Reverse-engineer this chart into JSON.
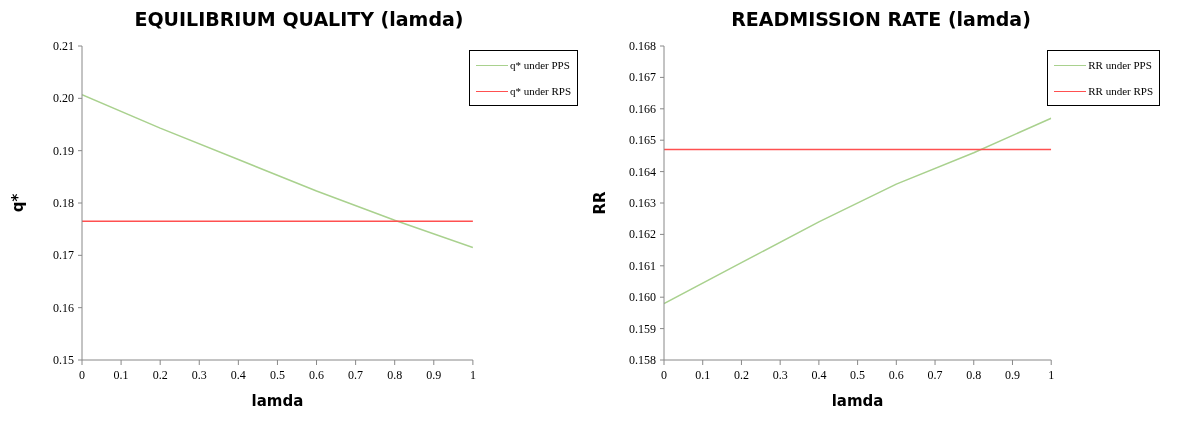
{
  "chart_data": [
    {
      "type": "line",
      "title": "EQUILIBRIUM QUALITY (lamda)",
      "xlabel": "lamda",
      "ylabel": "q*",
      "x": [
        0,
        0.2,
        0.4,
        0.6,
        0.8,
        1
      ],
      "series": [
        {
          "name": "q* under PPS",
          "color": "#a9d18e",
          "values": [
            0.2007,
            0.1943,
            0.1883,
            0.1823,
            0.1767,
            0.1715
          ]
        },
        {
          "name": "q* under RPS",
          "color": "#ff5050",
          "values": [
            0.1765,
            0.1765,
            0.1765,
            0.1765,
            0.1765,
            0.1765
          ]
        }
      ],
      "xlim": [
        0,
        1
      ],
      "xticks": [
        0,
        0.1,
        0.2,
        0.3,
        0.4,
        0.5,
        0.6,
        0.7,
        0.8,
        0.9,
        1
      ],
      "ylim": [
        0.15,
        0.21
      ],
      "yticks": [
        {
          "value": 0.15,
          "label": "0.15"
        },
        {
          "value": 0.16,
          "label": "0.16"
        },
        {
          "value": 0.17,
          "label": "0.17"
        },
        {
          "value": 0.18,
          "label": "0.18"
        },
        {
          "value": 0.19,
          "label": "0.19"
        },
        {
          "value": 0.2,
          "label": "0.20"
        },
        {
          "value": 0.21,
          "label": "0.21"
        }
      ],
      "grid": false,
      "legend": "top right",
      "marker": "none",
      "line_style": "solid"
    },
    {
      "type": "line",
      "title": "READMISSION RATE (lamda)",
      "xlabel": "lamda",
      "ylabel": "RR",
      "x": [
        0,
        0.2,
        0.4,
        0.6,
        0.8,
        1
      ],
      "series": [
        {
          "name": "RR under PPS",
          "color": "#a9d18e",
          "values": [
            0.1598,
            0.1611,
            0.1624,
            0.1636,
            0.1646,
            0.1657
          ]
        },
        {
          "name": "RR under RPS",
          "color": "#ff5050",
          "values": [
            0.1647,
            0.1647,
            0.1647,
            0.1647,
            0.1647,
            0.1647
          ]
        }
      ],
      "xlim": [
        0,
        1
      ],
      "xticks": [
        0,
        0.1,
        0.2,
        0.3,
        0.4,
        0.5,
        0.6,
        0.7,
        0.8,
        0.9,
        1
      ],
      "ylim": [
        0.158,
        0.168
      ],
      "yticks": [
        {
          "value": 0.158,
          "label": "0.158"
        },
        {
          "value": 0.159,
          "label": "0.159"
        },
        {
          "value": 0.16,
          "label": "0.160"
        },
        {
          "value": 0.161,
          "label": "0.161"
        },
        {
          "value": 0.162,
          "label": "0.162"
        },
        {
          "value": 0.163,
          "label": "0.163"
        },
        {
          "value": 0.164,
          "label": "0.164"
        },
        {
          "value": 0.165,
          "label": "0.165"
        },
        {
          "value": 0.166,
          "label": "0.166"
        },
        {
          "value": 0.167,
          "label": "0.167"
        },
        {
          "value": 0.168,
          "label": "0.168"
        }
      ],
      "grid": false,
      "legend": "top right",
      "marker": "none",
      "line_style": "solid"
    }
  ]
}
